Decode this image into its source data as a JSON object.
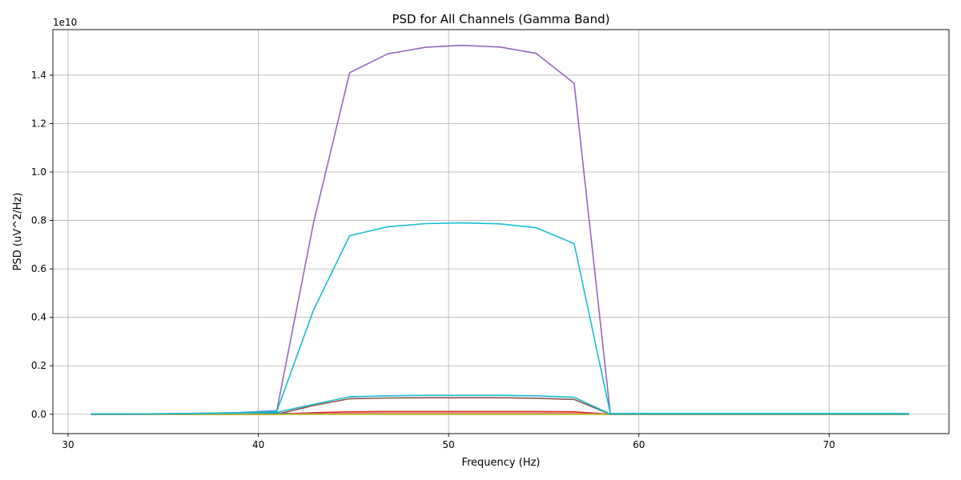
{
  "chart_data": {
    "type": "line",
    "title": "PSD for All Channels (Gamma Band)",
    "xlabel": "Frequency (Hz)",
    "ylabel": "PSD (uV^2/Hz)",
    "y_offset_label": "1e10",
    "xlim": [
      29.2,
      76.3
    ],
    "ylim": [
      -0.08,
      1.588
    ],
    "xticks": [
      30,
      40,
      50,
      60,
      70
    ],
    "yticks": [
      0.0,
      0.2,
      0.4,
      0.6,
      0.8,
      1.0,
      1.2,
      1.4
    ],
    "ytick_labels": [
      "0.0",
      "0.2",
      "0.4",
      "0.6",
      "0.8",
      "1.0",
      "1.2",
      "1.4"
    ],
    "grid": true,
    "x": [
      31.2,
      33.1,
      35.1,
      37.1,
      39.0,
      40.97,
      42.9,
      44.8,
      46.8,
      48.8,
      50.7,
      52.7,
      54.6,
      56.6,
      58.5,
      60.5,
      62.4,
      64.4,
      66.3,
      68.3,
      70.3,
      72.2,
      74.2
    ],
    "series": [
      {
        "color": "#1f77b4",
        "values": [
          0.001,
          0.001,
          0.001,
          0.002,
          0.003,
          0.004,
          0.001,
          0.001,
          0.001,
          0.001,
          0.001,
          0.001,
          0.001,
          0.001,
          0.0,
          0.0,
          0.0,
          0.0,
          0.0,
          0.0,
          0.0,
          0.0,
          0.0
        ]
      },
      {
        "color": "#ff7f0e",
        "values": [
          0.0,
          0.0,
          0.0,
          0.0,
          0.0,
          0.0,
          0.002,
          0.004,
          0.004,
          0.004,
          0.004,
          0.004,
          0.004,
          0.004,
          0.0,
          0.0,
          0.0,
          0.0,
          0.0,
          0.0,
          0.0,
          0.0,
          0.0
        ]
      },
      {
        "color": "#2ca02c",
        "values": [
          0.0,
          0.0,
          0.0,
          0.0,
          0.0,
          0.0,
          0.001,
          0.002,
          0.002,
          0.002,
          0.002,
          0.002,
          0.002,
          0.002,
          0.0,
          0.0,
          0.0,
          0.0,
          0.0,
          0.0,
          0.0,
          0.0,
          0.0
        ]
      },
      {
        "color": "#d62728",
        "values": [
          0.0,
          0.0,
          0.0,
          0.0,
          0.0,
          0.0,
          0.006,
          0.01,
          0.011,
          0.011,
          0.011,
          0.011,
          0.011,
          0.01,
          0.0,
          0.0,
          0.0,
          0.0,
          0.0,
          0.0,
          0.0,
          0.0,
          0.0
        ]
      },
      {
        "color": "#8c564b",
        "values": [
          0.0,
          0.0,
          0.0,
          0.0,
          0.0,
          0.0,
          0.036,
          0.064,
          0.067,
          0.068,
          0.068,
          0.068,
          0.066,
          0.061,
          0.0,
          0.0,
          0.0,
          0.0,
          0.0,
          0.0,
          0.0,
          0.0,
          0.0
        ]
      },
      {
        "color": "#e377c2",
        "values": [
          0.0,
          0.0,
          0.0,
          0.0,
          0.0,
          0.0,
          0.001,
          0.002,
          0.002,
          0.002,
          0.002,
          0.002,
          0.002,
          0.002,
          0.0,
          0.0,
          0.0,
          0.0,
          0.0,
          0.0,
          0.0,
          0.0,
          0.0
        ]
      },
      {
        "color": "#7f7f7f",
        "values": [
          0.0,
          0.0,
          0.0,
          0.0,
          0.0,
          0.0,
          0.0,
          0.0,
          0.0,
          0.0,
          0.0,
          0.0,
          0.0,
          0.0,
          0.0,
          0.0,
          0.0,
          0.0,
          0.0,
          0.0,
          0.0,
          0.0,
          0.0
        ]
      },
      {
        "color": "#bcbd22",
        "values": [
          0.0,
          0.0,
          0.0,
          0.0,
          0.0,
          0.0,
          0.0,
          0.0,
          0.0,
          0.0,
          0.0,
          0.0,
          0.0,
          0.0,
          0.0,
          0.0,
          0.0,
          0.0,
          0.0,
          0.0,
          0.0,
          0.0,
          0.0
        ]
      },
      {
        "color": "#17becf",
        "values": [
          0.001,
          0.001,
          0.002,
          0.003,
          0.005,
          0.008,
          0.041,
          0.072,
          0.076,
          0.078,
          0.078,
          0.078,
          0.076,
          0.07,
          0.001,
          0.001,
          0.001,
          0.001,
          0.001,
          0.001,
          0.001,
          0.001,
          0.001
        ]
      },
      {
        "color": "#9467bd",
        "values": [
          0.001,
          0.001,
          0.002,
          0.004,
          0.007,
          0.015,
          0.79,
          1.41,
          1.488,
          1.515,
          1.523,
          1.516,
          1.49,
          1.366,
          0.003,
          0.003,
          0.003,
          0.003,
          0.003,
          0.003,
          0.003,
          0.003,
          0.003
        ]
      },
      {
        "color": "#17becf",
        "values": [
          0.001,
          0.001,
          0.002,
          0.004,
          0.006,
          0.012,
          0.43,
          0.737,
          0.774,
          0.787,
          0.79,
          0.786,
          0.77,
          0.704,
          0.003,
          0.003,
          0.003,
          0.003,
          0.003,
          0.003,
          0.003,
          0.003,
          0.003
        ]
      }
    ]
  }
}
